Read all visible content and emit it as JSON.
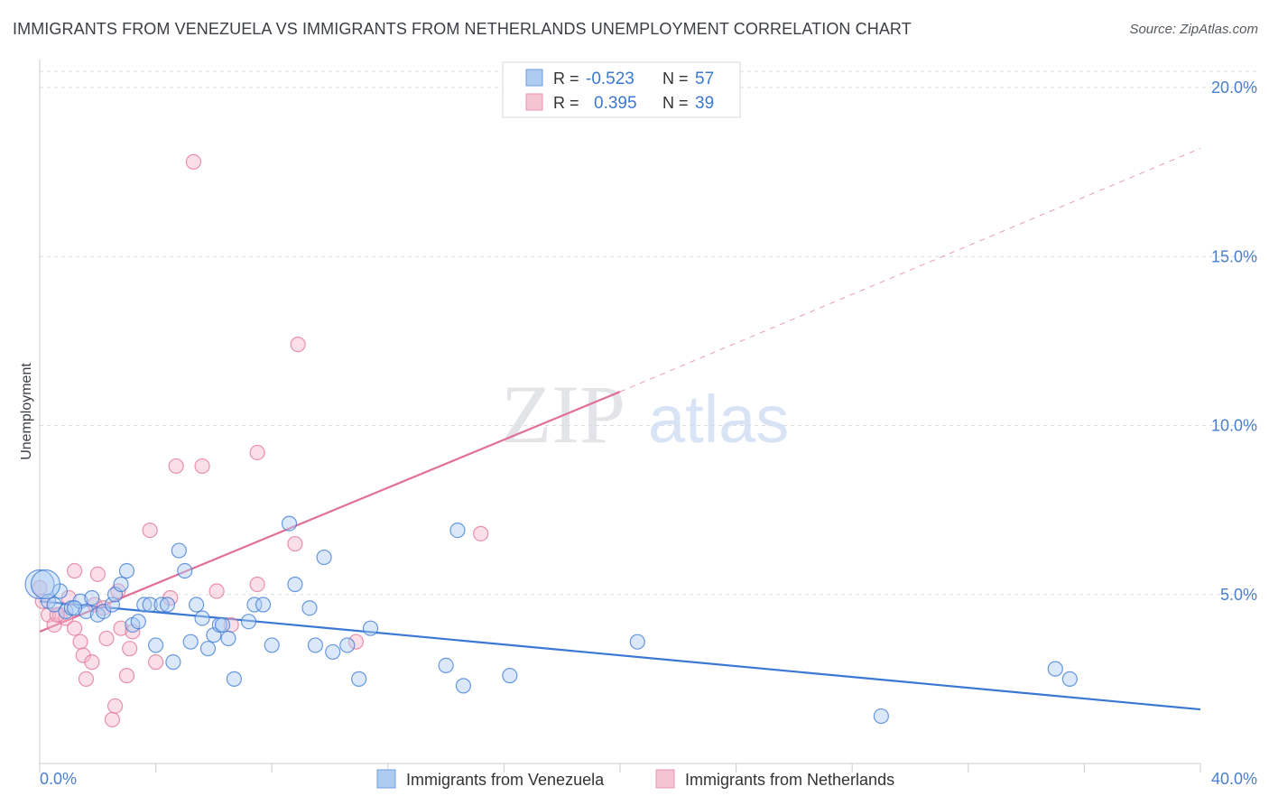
{
  "title": "IMMIGRANTS FROM VENEZUELA VS IMMIGRANTS FROM NETHERLANDS UNEMPLOYMENT CORRELATION CHART",
  "source": "Source: ZipAtlas.com",
  "watermark": {
    "zip": "ZIP",
    "atlas": "atlas"
  },
  "colors": {
    "blue": "#3a78d4",
    "blue_fill": "#aecbf2",
    "pink": "#e07096",
    "pink_fill": "#f5b8cb",
    "axis_label": "#4a7fcc",
    "grid": "#d9dde3"
  },
  "stats": [
    {
      "r_label": "R =",
      "r_value": "-0.523",
      "n_label": "N =",
      "n_value": "57",
      "color": "blue"
    },
    {
      "r_label": "R =",
      "r_value": "0.395",
      "n_label": "N =",
      "n_value": "39",
      "color": "pink"
    }
  ],
  "chart_data": {
    "type": "scatter",
    "title": "IMMIGRANTS FROM VENEZUELA VS IMMIGRANTS FROM NETHERLANDS UNEMPLOYMENT CORRELATION CHART",
    "xlabel": "",
    "ylabel": "Unemployment",
    "xlim": [
      0,
      40
    ],
    "ylim": [
      0,
      20
    ],
    "x_tick_labels": [
      "0.0%",
      "40.0%"
    ],
    "y_tick_labels": [
      "5.0%",
      "10.0%",
      "15.0%",
      "20.0%"
    ],
    "y_ticks": [
      5,
      10,
      15,
      20
    ],
    "grid": true,
    "legend_position": "bottom",
    "series": [
      {
        "name": "Immigrants from Venezuela",
        "color": "blue",
        "trend": {
          "x0": 0,
          "y0": 4.8,
          "x1": 40,
          "y1": 1.6
        },
        "points": [
          [
            0.0,
            5.3
          ],
          [
            0.3,
            4.8
          ],
          [
            0.5,
            4.7
          ],
          [
            0.7,
            5.1
          ],
          [
            0.9,
            4.5
          ],
          [
            1.1,
            4.6
          ],
          [
            1.4,
            4.8
          ],
          [
            1.6,
            4.5
          ],
          [
            1.8,
            4.9
          ],
          [
            2.0,
            4.4
          ],
          [
            2.2,
            4.5
          ],
          [
            2.5,
            4.7
          ],
          [
            2.6,
            5.0
          ],
          [
            2.8,
            5.3
          ],
          [
            3.0,
            5.7
          ],
          [
            3.2,
            4.1
          ],
          [
            3.4,
            4.2
          ],
          [
            3.6,
            4.7
          ],
          [
            3.8,
            4.7
          ],
          [
            4.0,
            3.5
          ],
          [
            4.2,
            4.7
          ],
          [
            4.4,
            4.7
          ],
          [
            4.6,
            3.0
          ],
          [
            4.8,
            6.3
          ],
          [
            5.0,
            5.7
          ],
          [
            5.2,
            3.6
          ],
          [
            5.4,
            4.7
          ],
          [
            5.6,
            4.3
          ],
          [
            5.8,
            3.4
          ],
          [
            6.0,
            3.8
          ],
          [
            6.2,
            4.1
          ],
          [
            6.3,
            4.1
          ],
          [
            6.5,
            3.7
          ],
          [
            6.7,
            2.5
          ],
          [
            7.2,
            4.2
          ],
          [
            7.4,
            4.7
          ],
          [
            7.7,
            4.7
          ],
          [
            8.0,
            3.5
          ],
          [
            8.6,
            7.1
          ],
          [
            8.8,
            5.3
          ],
          [
            9.3,
            4.6
          ],
          [
            9.5,
            3.5
          ],
          [
            9.8,
            6.1
          ],
          [
            10.1,
            3.3
          ],
          [
            10.6,
            3.5
          ],
          [
            11.0,
            2.5
          ],
          [
            11.4,
            4.0
          ],
          [
            14.0,
            2.9
          ],
          [
            14.4,
            6.9
          ],
          [
            14.6,
            2.3
          ],
          [
            16.2,
            2.6
          ],
          [
            20.6,
            3.6
          ],
          [
            29.0,
            1.4
          ],
          [
            35.0,
            2.8
          ],
          [
            35.5,
            2.5
          ],
          [
            0.2,
            5.3
          ],
          [
            1.2,
            4.6
          ]
        ]
      },
      {
        "name": "Immigrants from Netherlands",
        "color": "pink",
        "trend": {
          "x0": 0,
          "y0": 3.9,
          "x1": 20,
          "y1": 11.0,
          "dash_x1": 40,
          "dash_y1": 18.2
        },
        "points": [
          [
            0.0,
            5.2
          ],
          [
            0.3,
            4.4
          ],
          [
            0.5,
            4.1
          ],
          [
            0.7,
            4.4
          ],
          [
            0.9,
            4.3
          ],
          [
            1.0,
            4.9
          ],
          [
            1.2,
            4.0
          ],
          [
            1.2,
            5.7
          ],
          [
            1.4,
            3.6
          ],
          [
            1.5,
            3.2
          ],
          [
            1.6,
            2.5
          ],
          [
            1.8,
            3.0
          ],
          [
            1.9,
            4.7
          ],
          [
            2.0,
            5.6
          ],
          [
            2.2,
            4.6
          ],
          [
            2.3,
            3.7
          ],
          [
            2.5,
            1.3
          ],
          [
            2.6,
            1.7
          ],
          [
            2.7,
            5.1
          ],
          [
            2.8,
            4.0
          ],
          [
            3.0,
            2.6
          ],
          [
            3.2,
            3.9
          ],
          [
            3.8,
            6.9
          ],
          [
            4.0,
            3.0
          ],
          [
            4.5,
            4.9
          ],
          [
            4.7,
            8.8
          ],
          [
            5.3,
            17.8
          ],
          [
            5.6,
            8.8
          ],
          [
            6.1,
            5.1
          ],
          [
            6.6,
            4.1
          ],
          [
            7.5,
            9.2
          ],
          [
            7.5,
            5.3
          ],
          [
            8.8,
            6.5
          ],
          [
            8.9,
            12.4
          ],
          [
            10.9,
            3.6
          ],
          [
            15.2,
            6.8
          ],
          [
            0.6,
            4.4
          ],
          [
            3.1,
            3.4
          ],
          [
            0.1,
            4.8
          ]
        ]
      }
    ]
  }
}
